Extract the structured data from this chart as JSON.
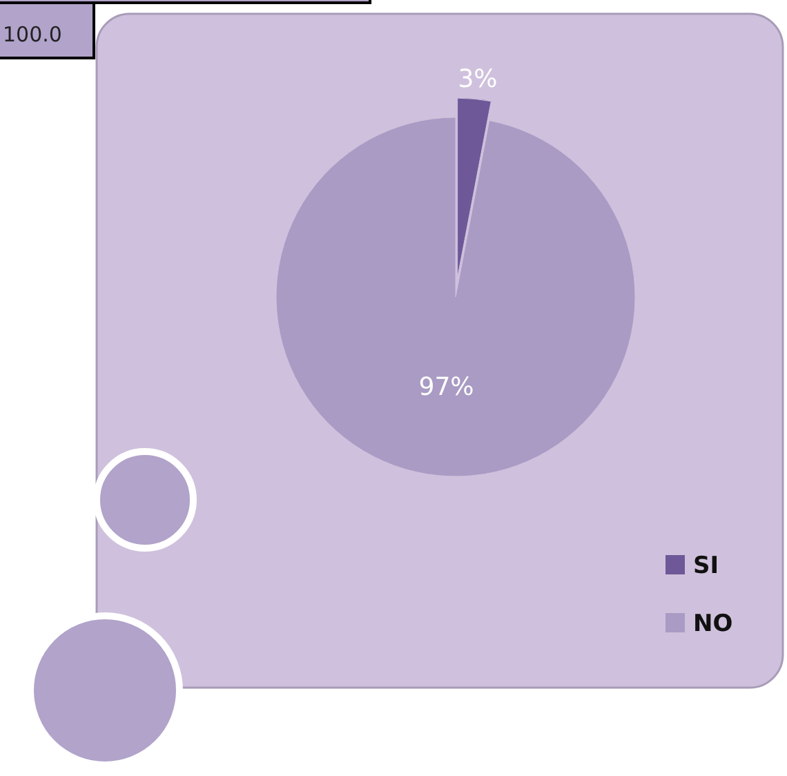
{
  "chart_data": {
    "type": "pie",
    "categories": [
      "SI",
      "NO"
    ],
    "values": [
      3,
      97
    ],
    "colors": [
      "#6e5898",
      "#a99bc3"
    ],
    "value_labels": [
      "3%",
      "97%"
    ],
    "legend": "bottom right",
    "annotations": [
      "100.0"
    ]
  }
}
